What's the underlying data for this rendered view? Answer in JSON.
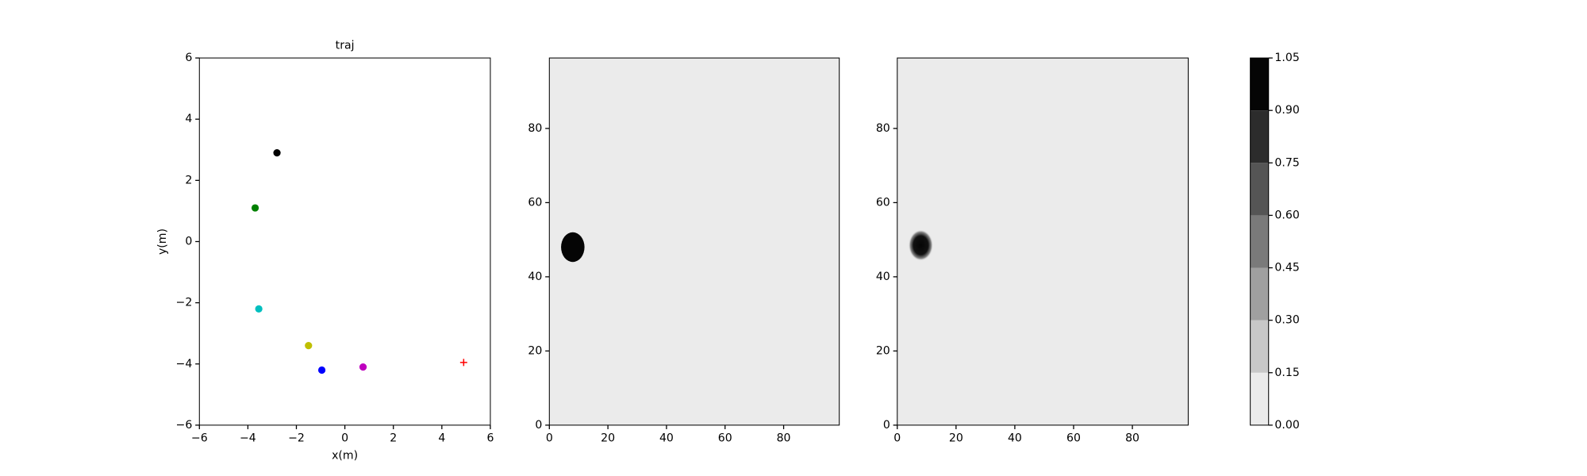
{
  "chart_data": [
    {
      "type": "scatter",
      "title": "traj",
      "xlabel": "x(m)",
      "ylabel": "y(m)",
      "x": [
        -2.8,
        -3.7,
        -3.55,
        -1.5,
        -0.95,
        0.75,
        4.9
      ],
      "y": [
        2.9,
        1.1,
        -2.2,
        -3.4,
        -4.2,
        -4.1,
        -3.95
      ],
      "colors": [
        "#000000",
        "#008000",
        "#00bfbf",
        "#bfbf00",
        "#0000ff",
        "#bf00bf",
        "#ff0000"
      ],
      "markers": [
        "o",
        "o",
        "o",
        "o",
        "o",
        "o",
        "+"
      ],
      "xlim": [
        -6,
        6
      ],
      "ylim": [
        -6,
        6
      ],
      "xticks": [
        {
          "value": -6,
          "label": "−6"
        },
        {
          "value": -4,
          "label": "−4"
        },
        {
          "value": -2,
          "label": "−2"
        },
        0,
        2,
        4,
        6
      ],
      "yticks": [
        {
          "value": -6,
          "label": "−6"
        },
        {
          "value": -4,
          "label": "−4"
        },
        {
          "value": -2,
          "label": "−2"
        },
        0,
        2,
        4,
        6
      ]
    },
    {
      "type": "heatmap",
      "xlim": [
        0,
        99
      ],
      "ylim": [
        0,
        99
      ],
      "xticks": [
        0,
        20,
        40,
        60,
        80
      ],
      "yticks": [
        0,
        20,
        40,
        60,
        80
      ],
      "background": 0,
      "blob": {
        "x": 8,
        "y": 48,
        "radius": 4,
        "value": 1
      },
      "smooth": false
    },
    {
      "type": "heatmap",
      "xlim": [
        0,
        99
      ],
      "ylim": [
        0,
        99
      ],
      "xticks": [
        0,
        20,
        40,
        60,
        80
      ],
      "yticks": [
        0,
        20,
        40,
        60,
        80
      ],
      "background": 0,
      "blob": {
        "x": 8,
        "y": 48.5,
        "radius": 4,
        "value": 1
      },
      "smooth": true
    },
    {
      "type": "colorbar",
      "levels": [
        0,
        0.15,
        0.3,
        0.45,
        0.6,
        0.75,
        0.9,
        1.05
      ],
      "colors": [
        "#ebebeb",
        "#c8c8c8",
        "#a0a0a0",
        "#7a7a7a",
        "#555555",
        "#2c2c2c",
        "#050505"
      ],
      "ticks": [
        {
          "value": 0,
          "label": "0.00"
        },
        {
          "value": 0.15,
          "label": "0.15"
        },
        {
          "value": 0.3,
          "label": "0.30"
        },
        {
          "value": 0.45,
          "label": "0.45"
        },
        {
          "value": 0.6,
          "label": "0.60"
        },
        {
          "value": 0.75,
          "label": "0.75"
        },
        {
          "value": 0.9,
          "label": "0.90"
        },
        {
          "value": 1.05,
          "label": "1.05"
        }
      ]
    }
  ]
}
